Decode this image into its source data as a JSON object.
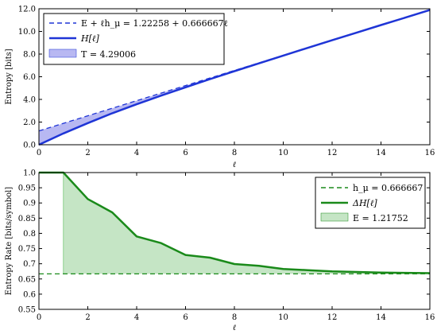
{
  "chart_data": [
    {
      "type": "line",
      "xlabel": "ℓ",
      "ylabel": "Entropy [bits]",
      "xlim": [
        0,
        16
      ],
      "ylim": [
        0,
        12
      ],
      "xticks": [
        "0",
        "2",
        "4",
        "6",
        "8",
        "10",
        "12",
        "14",
        "16"
      ],
      "yticks": [
        "0.0",
        "2.0",
        "4.0",
        "6.0",
        "8.0",
        "10.0",
        "12.0"
      ],
      "grid": false,
      "legend_position": "top-left",
      "series": [
        {
          "name": "E + ℓh_μ = 1.22258 + 0.666667ℓ",
          "style": "dashed",
          "color": "#1f35d6",
          "x": [
            0,
            16
          ],
          "y": [
            1.22258,
            11.88925
          ]
        },
        {
          "name": "H[ℓ]",
          "style": "solid",
          "color": "#1f35d6",
          "x": [
            0,
            1,
            2,
            3,
            4,
            5,
            6,
            7,
            8,
            9,
            10,
            11,
            12,
            13,
            14,
            15,
            16
          ],
          "y": [
            0.0,
            1.0,
            1.91,
            2.78,
            3.57,
            4.34,
            5.07,
            5.79,
            6.49,
            7.18,
            7.87,
            8.55,
            9.22,
            9.89,
            10.56,
            11.22,
            11.89
          ]
        }
      ],
      "fill": {
        "name": "T = 4.29006",
        "color": "#b8b8f2",
        "between": [
          "E + ℓh_μ = 1.22258 + 0.666667ℓ",
          "H[ℓ]"
        ]
      }
    },
    {
      "type": "line",
      "xlabel": "ℓ",
      "ylabel": "Entropy Rate [bits/symbol]",
      "xlim": [
        0,
        16
      ],
      "ylim": [
        0.55,
        1.0
      ],
      "xticks": [
        "0",
        "2",
        "4",
        "6",
        "8",
        "10",
        "12",
        "14",
        "16"
      ],
      "yticks": [
        "0.55",
        "0.6",
        "0.65",
        "0.7",
        "0.75",
        "0.8",
        "0.85",
        "0.9",
        "0.95",
        "1.0"
      ],
      "grid": false,
      "legend_position": "top-right",
      "series": [
        {
          "name": "h_μ = 0.666667",
          "style": "dashed",
          "color": "#1a8a1a",
          "x": [
            0,
            16
          ],
          "y": [
            0.666667,
            0.666667
          ]
        },
        {
          "name": "ΔH[ℓ]",
          "style": "solid",
          "color": "#1a8a1a",
          "x": [
            0,
            1,
            2,
            3,
            4,
            5,
            6,
            7,
            8,
            9,
            10,
            11,
            12,
            13,
            14,
            15,
            16
          ],
          "y": [
            1.0,
            1.0,
            0.913,
            0.869,
            0.79,
            0.768,
            0.729,
            0.72,
            0.699,
            0.693,
            0.683,
            0.679,
            0.675,
            0.673,
            0.671,
            0.67,
            0.669
          ]
        }
      ],
      "fill": {
        "name": "E = 1.21752",
        "color": "#c5e5c5",
        "between": [
          "h_μ = 0.666667",
          "ΔH[ℓ]"
        ],
        "x_from": 1
      }
    }
  ]
}
